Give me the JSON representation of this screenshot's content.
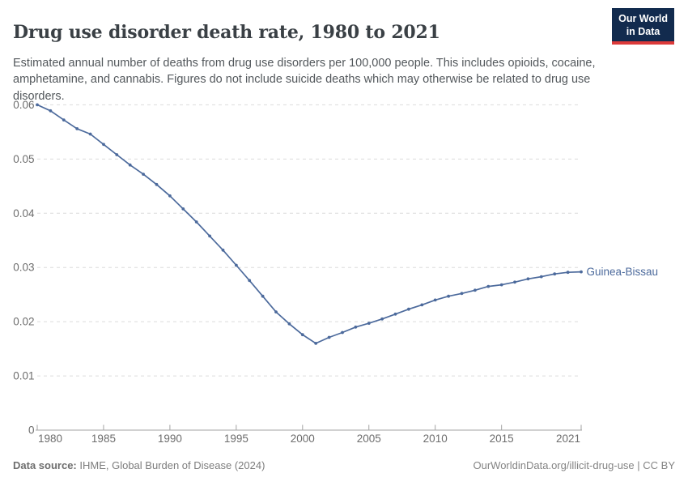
{
  "header": {
    "title": "Drug use disorder death rate, 1980 to 2021",
    "subtitle": "Estimated annual number of deaths from drug use disorders per 100,000 people. This includes opioids, cocaine, amphetamine, and cannabis. Figures do not include suicide deaths which may otherwise be related to drug use disorders.",
    "logo": {
      "line1": "Our World",
      "line2": "in Data",
      "bg": "#122B4E",
      "accent": "#DC3A3A"
    }
  },
  "chart_data": {
    "type": "line",
    "title": "Drug use disorder death rate, 1980 to 2021",
    "unit": "deaths per 100,000 people",
    "x": [
      1980,
      1981,
      1982,
      1983,
      1984,
      1985,
      1986,
      1987,
      1988,
      1989,
      1990,
      1991,
      1992,
      1993,
      1994,
      1995,
      1996,
      1997,
      1998,
      1999,
      2000,
      2001,
      2002,
      2003,
      2004,
      2005,
      2006,
      2007,
      2008,
      2009,
      2010,
      2011,
      2012,
      2013,
      2014,
      2015,
      2016,
      2017,
      2018,
      2019,
      2020,
      2021
    ],
    "series": [
      {
        "name": "Guinea-Bissau",
        "color": "#4C6A9C",
        "values": [
          0.06,
          0.0589,
          0.0572,
          0.0556,
          0.0546,
          0.0527,
          0.0508,
          0.0489,
          0.0472,
          0.0453,
          0.0432,
          0.0408,
          0.0384,
          0.0358,
          0.0332,
          0.0304,
          0.0276,
          0.0247,
          0.0218,
          0.0196,
          0.0176,
          0.016,
          0.0171,
          0.018,
          0.019,
          0.0197,
          0.0205,
          0.0214,
          0.0223,
          0.0231,
          0.024,
          0.0247,
          0.0252,
          0.0258,
          0.0265,
          0.0268,
          0.0273,
          0.0279,
          0.0283,
          0.0288,
          0.0291,
          0.0292
        ]
      }
    ],
    "xticks": [
      1980,
      1985,
      1990,
      1995,
      2000,
      2005,
      2010,
      2015,
      2021
    ],
    "yticks": [
      0,
      0.01,
      0.02,
      0.03,
      0.04,
      0.05,
      0.06
    ],
    "ylim": [
      0,
      0.06
    ],
    "xlim": [
      1980,
      2021
    ],
    "grid": "horizontal-dashed",
    "legend_position": "end-of-line",
    "colors": {
      "gridline": "#dcdcdc",
      "axis": "#a3a3a3",
      "tick_label": "#6d6d6d"
    }
  },
  "footer": {
    "source_label": "Data source:",
    "source_text": " IHME, Global Burden of Disease (2024)",
    "credit": "OurWorldinData.org/illicit-drug-use | CC BY"
  }
}
